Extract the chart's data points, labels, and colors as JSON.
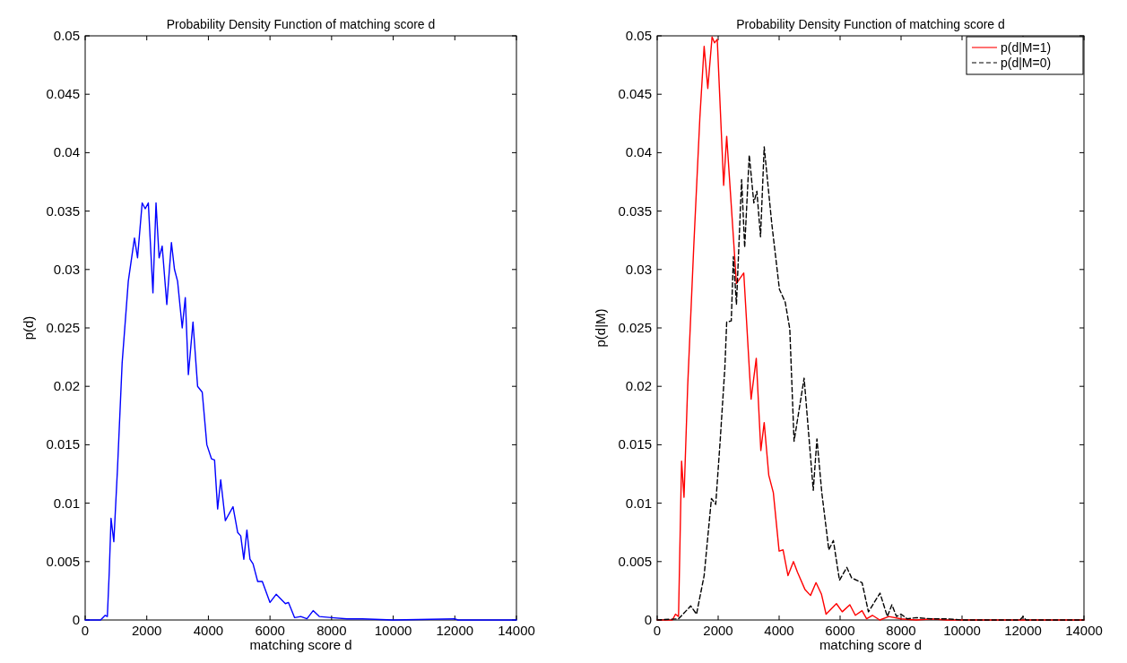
{
  "chart_data": [
    {
      "type": "line",
      "title": "Probability Density Function of matching score d",
      "xlabel": "matching score d",
      "ylabel": "p(d)",
      "xlim": [
        0,
        14000
      ],
      "xticks": [
        0,
        2000,
        4000,
        6000,
        8000,
        10000,
        12000,
        14000
      ],
      "ylim": [
        0,
        0.05
      ],
      "yticks": [
        0,
        0.005,
        0.01,
        0.015,
        0.02,
        0.025,
        0.03,
        0.035,
        0.04,
        0.045,
        0.05
      ],
      "grid": false,
      "legend": false,
      "marker": "none",
      "series": [
        {
          "color": "#0000ff",
          "line_style": "solid",
          "x": [
            0,
            500,
            650,
            720,
            780,
            840,
            930,
            1050,
            1200,
            1400,
            1600,
            1700,
            1850,
            1950,
            2050,
            2200,
            2300,
            2400,
            2500,
            2650,
            2800,
            2900,
            3000,
            3150,
            3250,
            3350,
            3500,
            3650,
            3800,
            3950,
            4100,
            4200,
            4300,
            4400,
            4550,
            4800,
            4950,
            5050,
            5150,
            5250,
            5350,
            5450,
            5600,
            5750,
            6000,
            6200,
            6500,
            6600,
            6800,
            7000,
            7200,
            7400,
            7600,
            8000,
            8500,
            9000,
            10000,
            12000,
            12100,
            14000
          ],
          "values": [
            0,
            0,
            0.0004,
            0.0003,
            0.004,
            0.0087,
            0.0067,
            0.013,
            0.022,
            0.029,
            0.0327,
            0.031,
            0.0357,
            0.0352,
            0.0357,
            0.028,
            0.0357,
            0.031,
            0.032,
            0.027,
            0.0323,
            0.03,
            0.029,
            0.025,
            0.0276,
            0.021,
            0.0255,
            0.02,
            0.0195,
            0.015,
            0.0138,
            0.0137,
            0.0095,
            0.012,
            0.0085,
            0.0097,
            0.0075,
            0.0072,
            0.0052,
            0.0077,
            0.0052,
            0.0048,
            0.0033,
            0.0033,
            0.0015,
            0.0022,
            0.0014,
            0.0015,
            0.0002,
            0.0003,
            0.0001,
            0.0008,
            0.0003,
            0.0002,
            0.0001,
            0.0001,
            0,
            0.0001,
            0,
            0
          ]
        }
      ]
    },
    {
      "type": "line",
      "title": "Probability Density Function of matching score d",
      "xlabel": "matching score d",
      "ylabel": "p(d|M)",
      "xlim": [
        0,
        14000
      ],
      "xticks": [
        0,
        2000,
        4000,
        6000,
        8000,
        10000,
        12000,
        14000
      ],
      "ylim": [
        0,
        0.05
      ],
      "yticks": [
        0,
        0.005,
        0.01,
        0.015,
        0.02,
        0.025,
        0.03,
        0.035,
        0.04,
        0.045,
        0.05
      ],
      "grid": false,
      "legend": "top right",
      "marker": "none",
      "series": [
        {
          "name": "p(d|M=1)",
          "color": "#ff0000",
          "line_style": "solid",
          "x": [
            0,
            500,
            600,
            700,
            800,
            880,
            1000,
            1200,
            1400,
            1540,
            1660,
            1800,
            1880,
            1970,
            2180,
            2280,
            2600,
            2840,
            3080,
            3250,
            3400,
            3510,
            3660,
            3810,
            4000,
            4130,
            4290,
            4470,
            4600,
            4850,
            5030,
            5210,
            5390,
            5540,
            5880,
            6070,
            6320,
            6500,
            6720,
            6870,
            7060,
            7300,
            7600,
            8000,
            8500,
            9000,
            9500,
            14000
          ],
          "values": [
            0,
            0,
            0.0005,
            0.0003,
            0.0136,
            0.0105,
            0.02,
            0.032,
            0.043,
            0.0491,
            0.0455,
            0.0499,
            0.0494,
            0.0497,
            0.0372,
            0.0414,
            0.0288,
            0.0297,
            0.0189,
            0.0224,
            0.0145,
            0.0169,
            0.0124,
            0.0109,
            0.0059,
            0.006,
            0.0038,
            0.005,
            0.0041,
            0.0026,
            0.0021,
            0.0032,
            0.0022,
            0.0005,
            0.0014,
            0.0007,
            0.0013,
            0.0004,
            0.0008,
            0.0001,
            0.0004,
            0,
            0.0003,
            0.0001,
            0,
            0.0001,
            0,
            0
          ]
        },
        {
          "name": "p(d|M=0)",
          "color": "#000000",
          "line_style": "dashed",
          "x": [
            0,
            700,
            1100,
            1290,
            1540,
            1780,
            1920,
            2070,
            2220,
            2280,
            2430,
            2500,
            2600,
            2770,
            2870,
            3020,
            3170,
            3270,
            3390,
            3510,
            3760,
            4010,
            4200,
            4350,
            4490,
            4820,
            5120,
            5240,
            5400,
            5630,
            5780,
            5980,
            6220,
            6380,
            6720,
            6930,
            7310,
            7550,
            7700,
            7850,
            8000,
            8200,
            8500,
            9000,
            9500,
            10000,
            11900,
            12000,
            12100,
            14000
          ],
          "values": [
            0,
            0.0001,
            0.0012,
            0.0005,
            0.0038,
            0.0104,
            0.0099,
            0.0155,
            0.0216,
            0.0255,
            0.0256,
            0.0311,
            0.027,
            0.0377,
            0.0319,
            0.0398,
            0.0357,
            0.0367,
            0.0328,
            0.0405,
            0.0339,
            0.0283,
            0.0272,
            0.0249,
            0.0153,
            0.0207,
            0.0111,
            0.0155,
            0.0109,
            0.006,
            0.0068,
            0.0034,
            0.0045,
            0.0036,
            0.0032,
            0.0007,
            0.0023,
            0.0003,
            0.0013,
            0.0003,
            0.0005,
            0.0001,
            0.0002,
            0.0001,
            0.0001,
            0,
            0,
            0.0003,
            0,
            0
          ]
        }
      ]
    }
  ]
}
